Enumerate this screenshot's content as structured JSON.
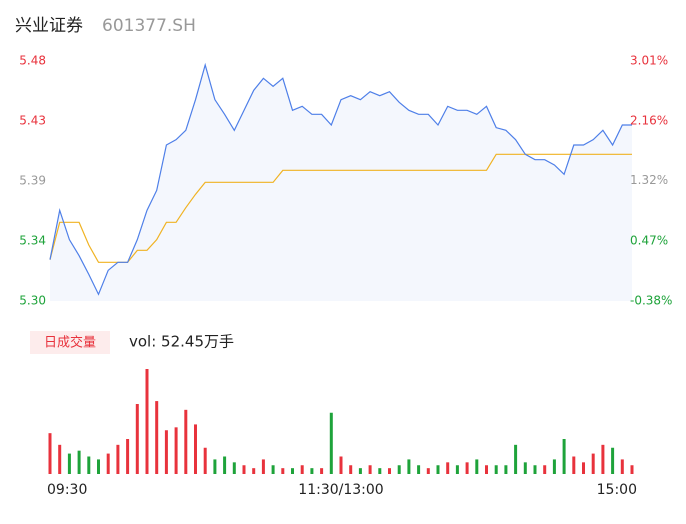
{
  "chart_data": {
    "type": "intraday",
    "title": "兴业证券",
    "subtitle": "601377.SH",
    "x": [
      0,
      4,
      8,
      12,
      16,
      20,
      24,
      28,
      32,
      36,
      40,
      44,
      48,
      52,
      56,
      60,
      64,
      68,
      72,
      76,
      80,
      84,
      88,
      92,
      96,
      100,
      104,
      108,
      112,
      116,
      120,
      124,
      128,
      132,
      136,
      140,
      144,
      148,
      152,
      156,
      160,
      164,
      168,
      172,
      176,
      180,
      184,
      188,
      192,
      196,
      200,
      204,
      208,
      212,
      216,
      220,
      224,
      228,
      232,
      236,
      240
    ],
    "xlim": [
      0,
      240
    ],
    "xticks": [
      {
        "value": 0,
        "label": "09:30"
      },
      {
        "value": 120,
        "label": "11:30/13:00"
      },
      {
        "value": 240,
        "label": "15:00"
      }
    ],
    "ylim": [
      5.3,
      5.48
    ],
    "yticks": [
      {
        "value": 5.48,
        "label": "5.48"
      },
      {
        "value": 5.435,
        "label": "5.43"
      },
      {
        "value": 5.39,
        "label": "5.39"
      },
      {
        "value": 5.345,
        "label": "5.34"
      },
      {
        "value": 5.3,
        "label": "5.30"
      }
    ],
    "y2lim": [
      -0.38,
      3.01
    ],
    "y2ticks": [
      {
        "value": 3.01,
        "label": "3.01%"
      },
      {
        "value": 2.16,
        "label": "2.16%"
      },
      {
        "value": 1.32,
        "label": "1.32%"
      },
      {
        "value": 0.47,
        "label": "0.47%"
      },
      {
        "value": -0.38,
        "label": "-0.38%"
      }
    ],
    "ytick_colors": [
      "#e8323c",
      "#e8323c",
      "#999999",
      "#1ea33a",
      "#1ea33a"
    ],
    "series": [
      {
        "color": "#4e7fe8",
        "values": [
          5.331,
          5.368,
          5.346,
          5.334,
          5.32,
          5.305,
          5.323,
          5.329,
          5.329,
          5.346,
          5.368,
          5.383,
          5.417,
          5.421,
          5.428,
          5.451,
          5.477,
          5.451,
          5.44,
          5.428,
          5.443,
          5.458,
          5.467,
          5.461,
          5.467,
          5.443,
          5.446,
          5.44,
          5.44,
          5.432,
          5.451,
          5.454,
          5.451,
          5.457,
          5.454,
          5.457,
          5.449,
          5.443,
          5.44,
          5.44,
          5.432,
          5.446,
          5.443,
          5.443,
          5.44,
          5.446,
          5.43,
          5.428,
          5.421,
          5.41,
          5.406,
          5.406,
          5.402,
          5.395,
          5.417,
          5.417,
          5.421,
          5.428,
          5.417,
          5.432,
          5.432
        ]
      },
      {
        "color": "#f0b323",
        "values": [
          5.331,
          5.359,
          5.359,
          5.359,
          5.342,
          5.329,
          5.329,
          5.329,
          5.329,
          5.338,
          5.338,
          5.346,
          5.359,
          5.359,
          5.37,
          5.38,
          5.389,
          5.389,
          5.389,
          5.389,
          5.389,
          5.389,
          5.389,
          5.389,
          5.398,
          5.398,
          5.398,
          5.398,
          5.398,
          5.398,
          5.398,
          5.398,
          5.398,
          5.398,
          5.398,
          5.398,
          5.398,
          5.398,
          5.398,
          5.398,
          5.398,
          5.398,
          5.398,
          5.398,
          5.398,
          5.398,
          5.41,
          5.41,
          5.41,
          5.41,
          5.41,
          5.41,
          5.41,
          5.41,
          5.41,
          5.41,
          5.41,
          5.41,
          5.41,
          5.41,
          5.41
        ]
      }
    ],
    "area_color": "#f4f7fd",
    "volume": {
      "button": "日成交量",
      "label": "vol: 52.45万手",
      "ylim": [
        0,
        3.6
      ],
      "up_color": "#e8323c",
      "down_color": "#1ea33a",
      "values": [
        1.4,
        1.0,
        0.7,
        0.8,
        0.6,
        0.5,
        0.7,
        1.0,
        1.2,
        2.4,
        3.6,
        2.5,
        1.5,
        1.6,
        2.2,
        1.7,
        0.9,
        0.5,
        0.6,
        0.4,
        0.3,
        0.2,
        0.5,
        0.3,
        0.2,
        0.2,
        0.3,
        0.2,
        0.2,
        2.1,
        0.6,
        0.3,
        0.2,
        0.3,
        0.2,
        0.2,
        0.3,
        0.5,
        0.3,
        0.2,
        0.3,
        0.4,
        0.3,
        0.4,
        0.5,
        0.3,
        0.3,
        0.3,
        1.0,
        0.4,
        0.3,
        0.3,
        0.5,
        1.2,
        0.6,
        0.4,
        0.7,
        1.0,
        0.9,
        0.5,
        0.3
      ]
    }
  }
}
